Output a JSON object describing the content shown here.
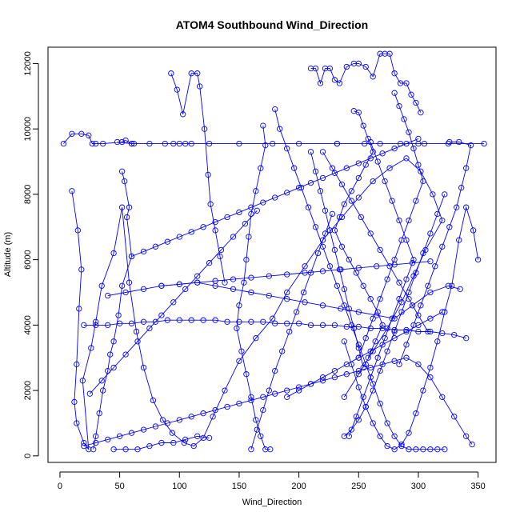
{
  "chart_data": {
    "type": "line",
    "title": "ATOM4 Southbound Wind_Direction",
    "xlabel": "Wind_Direction",
    "ylabel": "Altitude (m)",
    "xlim": [
      -10,
      365
    ],
    "ylim": [
      -200,
      12500
    ],
    "x_ticks": [
      0,
      50,
      100,
      150,
      200,
      250,
      300,
      350
    ],
    "y_ticks": [
      0,
      2000,
      4000,
      6000,
      8000,
      10000,
      12000
    ],
    "series_color": "#0000ff",
    "marker": "open-circle",
    "grid": false,
    "legend": "none",
    "series": [
      {
        "x": [
          3,
          10,
          18,
          24,
          27,
          30,
          36,
          52,
          55,
          60,
          62,
          105,
          232,
          268,
          300,
          355,
          325,
          305,
          285,
          255,
          232,
          200,
          178,
          150,
          125,
          110,
          100,
          95,
          88,
          75,
          60,
          48
        ],
        "y": [
          9550,
          9850,
          9850,
          9800,
          9550,
          9550,
          9550,
          9600,
          9650,
          9550,
          9550,
          9550,
          9550,
          9550,
          9550,
          9550,
          9550,
          9550,
          9550,
          9550,
          9550,
          9550,
          9550,
          9550,
          9550,
          9550,
          9550,
          9550,
          9550,
          9550,
          9550,
          9600
        ]
      },
      {
        "x": [
          10,
          15,
          18,
          16,
          14,
          12,
          14,
          20,
          24,
          19,
          26,
          30,
          35,
          45,
          52,
          58,
          64,
          70,
          78,
          86,
          94,
          104,
          112,
          120,
          128,
          138,
          150,
          164,
          178,
          190,
          205,
          220,
          236,
          250,
          262,
          276,
          290,
          302,
          312,
          320,
          306,
          296,
          286,
          274,
          262,
          250,
          238
        ],
        "y": [
          8100,
          6900,
          5700,
          4500,
          2800,
          1650,
          1000,
          400,
          200,
          2300,
          3300,
          4100,
          5200,
          6200,
          7600,
          5300,
          3800,
          2700,
          1700,
          1100,
          700,
          400,
          300,
          550,
          1200,
          2000,
          2900,
          3600,
          4200,
          5000,
          5800,
          6600,
          7300,
          7900,
          8400,
          8800,
          9100,
          8700,
          8000,
          7200,
          6300,
          5500,
          4700,
          3900,
          3200,
          2500,
          1800
        ]
      },
      {
        "x": [
          52,
          54,
          58,
          56,
          60,
          52,
          49,
          45,
          42,
          40,
          36,
          33,
          30,
          28
        ],
        "y": [
          8700,
          8400,
          7600,
          7300,
          6100,
          5200,
          4300,
          3500,
          3100,
          2600,
          2000,
          1300,
          600,
          200
        ]
      },
      {
        "x": [
          93,
          98,
          103,
          110,
          115,
          117,
          121,
          124,
          126,
          130,
          134,
          138
        ],
        "y": [
          11700,
          11200,
          10450,
          11700,
          11700,
          11300,
          10000,
          8600,
          7700,
          6900,
          6100,
          5300
        ]
      },
      {
        "x": [
          210,
          214,
          218,
          222,
          226,
          230,
          234,
          240,
          246,
          250,
          256,
          262,
          268,
          272,
          276,
          280,
          285,
          290,
          294,
          298,
          302
        ],
        "y": [
          11850,
          11850,
          11400,
          11850,
          11850,
          11500,
          11400,
          11900,
          12000,
          12000,
          11900,
          11600,
          12300,
          12300,
          12300,
          11700,
          11400,
          11400,
          11050,
          10800,
          10500
        ]
      },
      {
        "x": [
          246,
          250,
          254,
          258,
          262,
          256,
          250,
          244,
          238,
          234,
          230,
          236,
          242,
          248,
          254,
          260,
          266,
          270,
          264,
          258
        ],
        "y": [
          10550,
          10500,
          10100,
          9700,
          9300,
          8900,
          8500,
          8100,
          7700,
          7300,
          6900,
          6400,
          6000,
          5600,
          5200,
          4800,
          4400,
          4000,
          3500,
          3000
        ]
      },
      {
        "x": [
          170,
          172,
          168,
          164,
          160,
          158,
          156,
          154,
          150,
          148,
          152,
          156,
          160,
          164,
          168,
          172,
          176
        ],
        "y": [
          10100,
          9500,
          8800,
          8100,
          7400,
          6700,
          6000,
          5300,
          4600,
          3900,
          3200,
          2500,
          1800,
          1100,
          600,
          200,
          200
        ]
      },
      {
        "x": [
          180,
          184,
          190,
          196,
          202,
          208,
          214,
          220,
          226,
          232,
          238,
          244,
          250,
          256,
          262,
          268,
          274,
          280,
          286,
          292,
          298,
          304,
          310,
          316,
          322
        ],
        "y": [
          10600,
          10000,
          9400,
          8800,
          8200,
          7600,
          7000,
          6400,
          5800,
          5200,
          4600,
          4000,
          3400,
          2800,
          2200,
          1600,
          1000,
          600,
          300,
          200,
          200,
          200,
          200,
          200,
          200
        ]
      },
      {
        "x": [
          280,
          284,
          288,
          292,
          296,
          300,
          304,
          298,
          292,
          286,
          280,
          274,
          268,
          262,
          256,
          250
        ],
        "y": [
          11100,
          10700,
          10300,
          9900,
          9400,
          8900,
          8400,
          7800,
          7200,
          6600,
          6000,
          5400,
          4800,
          4200,
          3600,
          3000
        ]
      },
      {
        "x": [
          326,
          334,
          344,
          340,
          336,
          332,
          326,
          320,
          314,
          308,
          302,
          296,
          290,
          284
        ],
        "y": [
          9600,
          9600,
          9500,
          8800,
          8200,
          7600,
          7000,
          6400,
          5800,
          5200,
          4600,
          4000,
          3400,
          2800
        ]
      },
      {
        "x": [
          350,
          346,
          340,
          334,
          328,
          322,
          316,
          310,
          304,
          298,
          292,
          286,
          280,
          274,
          268,
          262,
          256,
          250,
          244,
          238
        ],
        "y": [
          6000,
          6900,
          7600,
          6600,
          5200,
          4400,
          3500,
          2700,
          2000,
          1300,
          700,
          350,
          200,
          300,
          600,
          1000,
          1500,
          2100,
          2800,
          3500
        ]
      },
      {
        "x": [
          340,
          330,
          320,
          310,
          300,
          290,
          280,
          270,
          260,
          250,
          240,
          230,
          220,
          210,
          200,
          190,
          180,
          170,
          160,
          150,
          140,
          130,
          120,
          110,
          100,
          90,
          80,
          70,
          60,
          50,
          40,
          30,
          20
        ],
        "y": [
          3600,
          3700,
          3750,
          3800,
          3800,
          3850,
          3850,
          3900,
          3900,
          3950,
          3950,
          4000,
          4000,
          4000,
          4050,
          4050,
          4050,
          4100,
          4100,
          4100,
          4100,
          4150,
          4150,
          4150,
          4150,
          4150,
          4100,
          4100,
          4050,
          4050,
          4000,
          4000,
          4000
        ]
      },
      {
        "x": [
          20,
          30,
          40,
          50,
          60,
          70,
          80,
          90,
          100,
          110,
          120,
          130,
          140,
          150,
          160,
          170,
          180,
          190,
          200,
          210,
          220,
          230,
          240,
          250,
          260,
          270,
          280,
          290,
          300,
          310,
          320,
          330,
          340,
          345
        ],
        "y": [
          300,
          400,
          500,
          600,
          700,
          800,
          900,
          1000,
          1100,
          1200,
          1300,
          1400,
          1500,
          1600,
          1700,
          1800,
          1900,
          2000,
          2100,
          2200,
          2300,
          2400,
          2500,
          2600,
          2700,
          2800,
          2900,
          3000,
          2800,
          2400,
          1800,
          1200,
          600,
          350
        ]
      },
      {
        "x": [
          45,
          55,
          65,
          75,
          85,
          95,
          105,
          115,
          125
        ],
        "y": [
          200,
          200,
          200,
          300,
          400,
          400,
          500,
          600,
          550
        ]
      },
      {
        "x": [
          60,
          70,
          80,
          90,
          100,
          110,
          120,
          130,
          140,
          150,
          160,
          170,
          180,
          190,
          200,
          210,
          220,
          230,
          240,
          250,
          260,
          270,
          280,
          290,
          300
        ],
        "y": [
          6100,
          6250,
          6400,
          6550,
          6700,
          6850,
          7000,
          7150,
          7300,
          7450,
          7600,
          7750,
          7900,
          8050,
          8200,
          8350,
          8500,
          8650,
          8800,
          8950,
          9100,
          9250,
          9400,
          9550,
          9700
        ]
      },
      {
        "x": [
          40,
          55,
          70,
          85,
          100,
          115,
          130,
          145,
          160,
          175,
          190,
          205,
          220,
          235,
          250,
          265,
          280,
          295,
          310
        ],
        "y": [
          4900,
          5000,
          5100,
          5200,
          5250,
          5300,
          5350,
          5400,
          5450,
          5500,
          5550,
          5600,
          5650,
          5700,
          5750,
          5800,
          5850,
          5900,
          5950
        ]
      },
      {
        "x": [
          85,
          100,
          115,
          130,
          145,
          160,
          175,
          190,
          205,
          220,
          235,
          250,
          265,
          280,
          295,
          310,
          325,
          335
        ],
        "y": [
          5200,
          5250,
          5300,
          5200,
          5100,
          5000,
          4900,
          4800,
          4700,
          4600,
          4500,
          4400,
          4300,
          4200,
          4600,
          5000,
          5200,
          5100
        ]
      },
      {
        "x": [
          25,
          35,
          45,
          55,
          65,
          75,
          85,
          95,
          105,
          115,
          125,
          135,
          145,
          155,
          165
        ],
        "y": [
          1900,
          2300,
          2700,
          3100,
          3500,
          3900,
          4300,
          4700,
          5100,
          5500,
          5900,
          6300,
          6700,
          7100,
          7500
        ]
      },
      {
        "x": [
          190,
          200,
          210,
          220,
          230,
          240,
          250,
          260,
          270,
          280,
          290,
          300,
          310,
          320
        ],
        "y": [
          1800,
          2000,
          2200,
          2400,
          2600,
          2800,
          3000,
          3200,
          3400,
          3600,
          3800,
          4000,
          4200,
          4400
        ]
      },
      {
        "x": [
          220,
          228,
          236,
          244,
          252,
          260,
          268,
          276,
          284,
          292,
          300,
          308
        ],
        "y": [
          9300,
          8800,
          8300,
          7800,
          7300,
          6800,
          6300,
          5800,
          5300,
          4800,
          4300,
          3800
        ]
      },
      {
        "x": [
          260,
          266,
          272,
          278,
          284,
          290,
          296,
          290,
          284,
          278,
          272,
          266,
          260,
          254,
          248,
          242
        ],
        "y": [
          9600,
          9000,
          8400,
          7800,
          7200,
          6600,
          6000,
          5400,
          4800,
          4200,
          3600,
          3000,
          2400,
          1800,
          1200,
          600
        ]
      },
      {
        "x": [
          238,
          244,
          250,
          256,
          262,
          268,
          274,
          280,
          286,
          292,
          298,
          304,
          310,
          316,
          322
        ],
        "y": [
          600,
          800,
          1100,
          1500,
          2000,
          2600,
          3200,
          3800,
          4400,
          5000,
          5600,
          6200,
          6800,
          7400,
          8000
        ]
      },
      {
        "x": [
          160,
          165,
          170,
          175,
          180,
          186,
          192,
          198,
          204,
          210,
          216,
          222,
          228
        ],
        "y": [
          200,
          800,
          1400,
          2000,
          2600,
          3200,
          3800,
          4400,
          5000,
          5600,
          6200,
          6800,
          7400
        ]
      },
      {
        "x": [
          210,
          214,
          218,
          222,
          226,
          230,
          234,
          238,
          242,
          246,
          250,
          254
        ],
        "y": [
          9300,
          8700,
          8100,
          7500,
          6900,
          6300,
          5700,
          5100,
          4500,
          3900,
          3300,
          2700
        ]
      }
    ]
  }
}
